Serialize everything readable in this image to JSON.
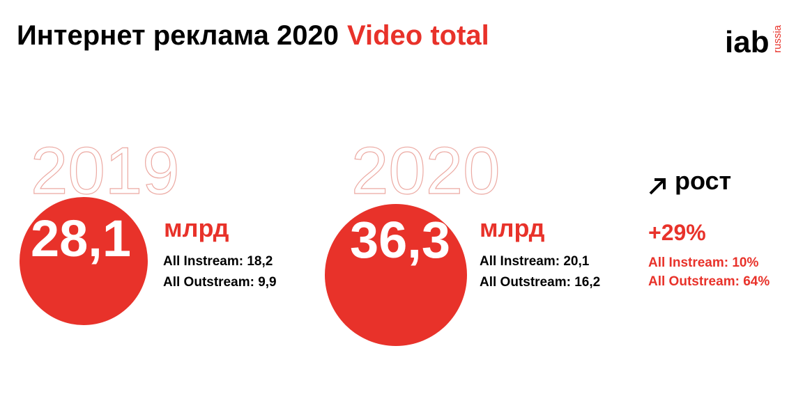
{
  "header": {
    "title": "Интернет реклама 2020",
    "title_highlight": "Video total",
    "logo": "iab",
    "logo_sub": "russia"
  },
  "years": [
    {
      "year": "2019",
      "total": "28,1",
      "unit": "млрд",
      "lines": [
        "All Instream: 18,2",
        "All Outstream: 9,9"
      ]
    },
    {
      "year": "2020",
      "total": "36,3",
      "unit": "млрд",
      "lines": [
        "All Instream: 20,1",
        "All Outstream: 16,2"
      ]
    }
  ],
  "growth": {
    "label": "рост",
    "total": "+29%",
    "lines": [
      "All Instream: 10%",
      "All Outstream: 64%"
    ]
  }
}
